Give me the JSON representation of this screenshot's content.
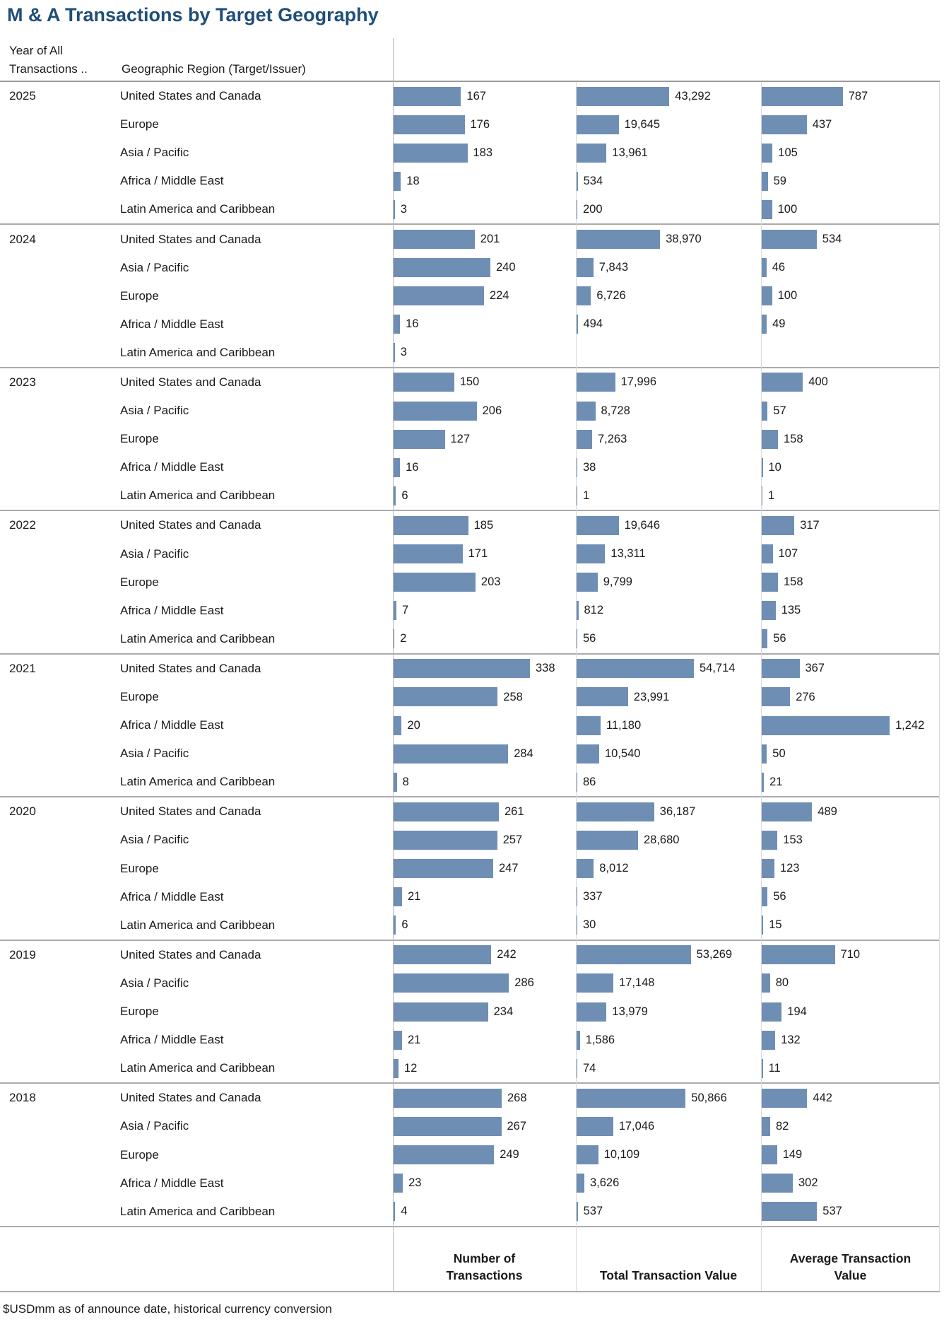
{
  "title": "M & A Transactions by Target Geography",
  "header": {
    "year_col_line1": "Year of All",
    "year_col_line2": "Transactions ..",
    "region_col": "Geographic Region (Target/Issuer)"
  },
  "footnote": "$USDmm as of announce date, historical currency conversion",
  "colors": {
    "bar": "#6F8EB4",
    "title": "#1F4E79"
  },
  "chart_data": {
    "type": "bar",
    "title": "M & A Transactions by Target Geography",
    "measures": [
      "Number of Transactions",
      "Total Transaction Value",
      "Average Transaction Value"
    ],
    "measure_labels": [
      "Number of\nTransactions",
      "Total Transaction Value",
      "Average Transaction\nValue"
    ],
    "units_note": "$USDmm as of announce date, historical currency conversion",
    "legend_position": "none",
    "grid": false,
    "axis_max": {
      "num": 338,
      "total": 54714,
      "avg": 1242
    },
    "years": [
      {
        "year": "2025",
        "rows": [
          {
            "region": "United States and Canada",
            "num": 167,
            "total": 43292,
            "avg": 787
          },
          {
            "region": "Europe",
            "num": 176,
            "total": 19645,
            "avg": 437
          },
          {
            "region": "Asia / Pacific",
            "num": 183,
            "total": 13961,
            "avg": 105
          },
          {
            "region": "Africa / Middle East",
            "num": 18,
            "total": 534,
            "avg": 59
          },
          {
            "region": "Latin America and Caribbean",
            "num": 3,
            "total": 200,
            "avg": 100
          }
        ]
      },
      {
        "year": "2024",
        "rows": [
          {
            "region": "United States and Canada",
            "num": 201,
            "total": 38970,
            "avg": 534
          },
          {
            "region": "Asia / Pacific",
            "num": 240,
            "total": 7843,
            "avg": 46
          },
          {
            "region": "Europe",
            "num": 224,
            "total": 6726,
            "avg": 100
          },
          {
            "region": "Africa / Middle East",
            "num": 16,
            "total": 494,
            "avg": 49
          },
          {
            "region": "Latin America and Caribbean",
            "num": 3,
            "total": null,
            "avg": null
          }
        ]
      },
      {
        "year": "2023",
        "rows": [
          {
            "region": "United States and Canada",
            "num": 150,
            "total": 17996,
            "avg": 400
          },
          {
            "region": "Asia / Pacific",
            "num": 206,
            "total": 8728,
            "avg": 57
          },
          {
            "region": "Europe",
            "num": 127,
            "total": 7263,
            "avg": 158
          },
          {
            "region": "Africa / Middle East",
            "num": 16,
            "total": 38,
            "avg": 10
          },
          {
            "region": "Latin America and Caribbean",
            "num": 6,
            "total": 1,
            "avg": 1
          }
        ]
      },
      {
        "year": "2022",
        "rows": [
          {
            "region": "United States and Canada",
            "num": 185,
            "total": 19646,
            "avg": 317
          },
          {
            "region": "Asia / Pacific",
            "num": 171,
            "total": 13311,
            "avg": 107
          },
          {
            "region": "Europe",
            "num": 203,
            "total": 9799,
            "avg": 158
          },
          {
            "region": "Africa / Middle East",
            "num": 7,
            "total": 812,
            "avg": 135
          },
          {
            "region": "Latin America and Caribbean",
            "num": 2,
            "total": 56,
            "avg": 56
          }
        ]
      },
      {
        "year": "2021",
        "rows": [
          {
            "region": "United States and Canada",
            "num": 338,
            "total": 54714,
            "avg": 367
          },
          {
            "region": "Europe",
            "num": 258,
            "total": 23991,
            "avg": 276
          },
          {
            "region": "Africa / Middle East",
            "num": 20,
            "total": 11180,
            "avg": 1242
          },
          {
            "region": "Asia / Pacific",
            "num": 284,
            "total": 10540,
            "avg": 50
          },
          {
            "region": "Latin America and Caribbean",
            "num": 8,
            "total": 86,
            "avg": 21
          }
        ]
      },
      {
        "year": "2020",
        "rows": [
          {
            "region": "United States and Canada",
            "num": 261,
            "total": 36187,
            "avg": 489
          },
          {
            "region": "Asia / Pacific",
            "num": 257,
            "total": 28680,
            "avg": 153
          },
          {
            "region": "Europe",
            "num": 247,
            "total": 8012,
            "avg": 123
          },
          {
            "region": "Africa / Middle East",
            "num": 21,
            "total": 337,
            "avg": 56
          },
          {
            "region": "Latin America and Caribbean",
            "num": 6,
            "total": 30,
            "avg": 15
          }
        ]
      },
      {
        "year": "2019",
        "rows": [
          {
            "region": "United States and Canada",
            "num": 242,
            "total": 53269,
            "avg": 710
          },
          {
            "region": "Asia / Pacific",
            "num": 286,
            "total": 17148,
            "avg": 80
          },
          {
            "region": "Europe",
            "num": 234,
            "total": 13979,
            "avg": 194
          },
          {
            "region": "Africa / Middle East",
            "num": 21,
            "total": 1586,
            "avg": 132
          },
          {
            "region": "Latin America and Caribbean",
            "num": 12,
            "total": 74,
            "avg": 11
          }
        ]
      },
      {
        "year": "2018",
        "rows": [
          {
            "region": "United States and Canada",
            "num": 268,
            "total": 50866,
            "avg": 442
          },
          {
            "region": "Asia / Pacific",
            "num": 267,
            "total": 17046,
            "avg": 82
          },
          {
            "region": "Europe",
            "num": 249,
            "total": 10109,
            "avg": 149
          },
          {
            "region": "Africa / Middle East",
            "num": 23,
            "total": 3626,
            "avg": 302
          },
          {
            "region": "Latin America and Caribbean",
            "num": 4,
            "total": 537,
            "avg": 537
          }
        ]
      }
    ]
  }
}
